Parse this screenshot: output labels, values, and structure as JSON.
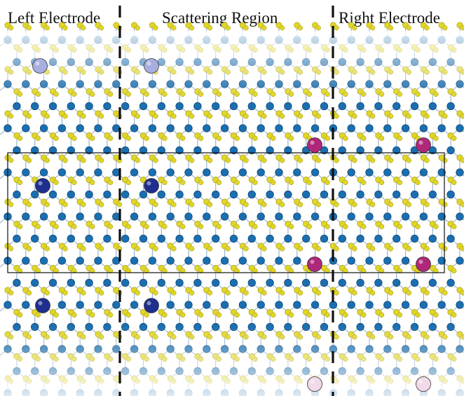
{
  "labels": {
    "left": "Left Electrode",
    "center": "Scattering Region",
    "right": "Right Electrode"
  },
  "colors": {
    "metal_atom": "#1a6fb0",
    "chalcogen_atom": "#e0d52a",
    "fade_tint": "#ffffff",
    "dopant_lavender": "#a9aee0",
    "dopant_navy": "#1f2f8f",
    "dopant_magenta": "#b0277a",
    "dopant_pink": "#f1d9e8",
    "divider": "#111111",
    "cell_outline": "#111111"
  },
  "icons": {
    "divider": "dashed-line",
    "cell": "supercell-rectangle"
  }
}
